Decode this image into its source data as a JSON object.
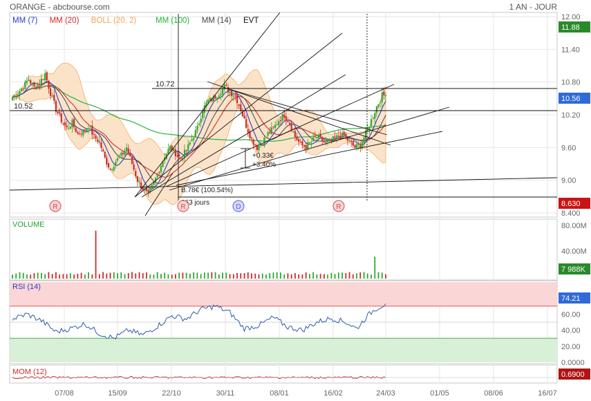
{
  "header": {
    "left_title": "ORANGE - abcbourse.com",
    "right_title": "1 AN - JOUR"
  },
  "legend": [
    {
      "label": "MM (7)",
      "color": "#2b39c8"
    },
    {
      "label": "MM (20)",
      "color": "#d32a2a"
    },
    {
      "label": "BOLL (20, 2)",
      "color": "#f2a455"
    },
    {
      "label": "MM (100)",
      "color": "#24b43c"
    },
    {
      "label": "MM (14)",
      "color": "#444444"
    },
    {
      "label": "EVT",
      "color": "#111111"
    }
  ],
  "colors": {
    "up_candle": "#2fa82f",
    "down_candle": "#cc2b2b",
    "boll_fill": "#fbe1c4",
    "rsi_upper_zone": "#fbd6d6",
    "rsi_lower_zone": "#d8efd8",
    "rsi_line": "#2c5ca8",
    "mom_line": "#cc2b2b",
    "grid": "#e6e6e6",
    "badge_last": "#2a8a2a",
    "badge_value": "#2f6ad8",
    "badge_low": "#c81414"
  },
  "chart_data": [
    {
      "type": "candlestick",
      "panel": "price",
      "x_ticks": [
        "07/08",
        "15/09",
        "22/10",
        "30/11",
        "08/01",
        "16/02",
        "24/03",
        "01/05",
        "08/06",
        "16/07"
      ],
      "y_ticks": [
        "12.00",
        "11.40",
        "10.80",
        "10.20",
        "9.60",
        "9.00",
        "8.400"
      ],
      "ylim": [
        8.4,
        12.0
      ],
      "close_path": [
        [
          0,
          10.52
        ],
        [
          3,
          10.6
        ],
        [
          6,
          10.72
        ],
        [
          9,
          10.85
        ],
        [
          12,
          10.7
        ],
        [
          15,
          10.78
        ],
        [
          18,
          10.95
        ],
        [
          21,
          10.6
        ],
        [
          24,
          10.3
        ],
        [
          27,
          10.1
        ],
        [
          30,
          9.95
        ],
        [
          33,
          10.05
        ],
        [
          36,
          9.85
        ],
        [
          39,
          9.9
        ],
        [
          42,
          10.0
        ],
        [
          45,
          9.8
        ],
        [
          48,
          9.7
        ],
        [
          51,
          9.4
        ],
        [
          54,
          9.2
        ],
        [
          57,
          9.35
        ],
        [
          60,
          9.45
        ],
        [
          63,
          9.6
        ],
        [
          66,
          9.3
        ],
        [
          69,
          9.0
        ],
        [
          72,
          8.85
        ],
        [
          75,
          8.72
        ],
        [
          78,
          8.95
        ],
        [
          81,
          9.2
        ],
        [
          84,
          9.45
        ],
        [
          87,
          9.6
        ],
        [
          90,
          9.5
        ],
        [
          93,
          9.4
        ],
        [
          96,
          9.55
        ],
        [
          99,
          9.75
        ],
        [
          102,
          9.95
        ],
        [
          105,
          10.3
        ],
        [
          108,
          10.45
        ],
        [
          111,
          10.5
        ],
        [
          114,
          10.6
        ],
        [
          117,
          10.72
        ],
        [
          120,
          10.62
        ],
        [
          123,
          10.55
        ],
        [
          126,
          10.3
        ],
        [
          129,
          10.0
        ],
        [
          132,
          9.75
        ],
        [
          135,
          9.6
        ],
        [
          138,
          9.7
        ],
        [
          141,
          9.85
        ],
        [
          144,
          9.95
        ],
        [
          147,
          10.1
        ],
        [
          150,
          10.2
        ],
        [
          153,
          10.05
        ],
        [
          156,
          9.8
        ],
        [
          159,
          9.65
        ],
        [
          162,
          9.62
        ],
        [
          165,
          9.7
        ],
        [
          168,
          9.8
        ],
        [
          171,
          9.72
        ],
        [
          174,
          9.68
        ],
        [
          177,
          9.75
        ],
        [
          180,
          9.8
        ],
        [
          183,
          9.82
        ],
        [
          186,
          9.7
        ],
        [
          189,
          9.6
        ],
        [
          192,
          9.65
        ],
        [
          195,
          9.85
        ],
        [
          198,
          10.1
        ],
        [
          201,
          10.35
        ],
        [
          204,
          10.55
        ],
        [
          207,
          10.56
        ]
      ],
      "candles_count": 207,
      "last_close": 10.56,
      "annotations": {
        "level_high_label": "10.72",
        "level_left_label": "10.52",
        "move_label": "+0.33€",
        "move_pct_label": "+3.40%",
        "change_label": "B.78€ (100.54%)",
        "days_label": "263 jours",
        "event_markers": [
          "R",
          "R",
          "D",
          "R"
        ]
      },
      "right_badges": {
        "top_value": "11.88",
        "last_value": "10.56",
        "low_value": "8.630"
      }
    },
    {
      "type": "bar",
      "panel": "volume",
      "title": "VOLUME",
      "y_ticks": [
        "80.00M",
        "40.00M"
      ],
      "ylim": [
        0,
        80
      ],
      "spikes": [
        [
          46,
          72
        ],
        [
          200,
          33
        ]
      ],
      "base_level": 6,
      "last_badge": "7 988K"
    },
    {
      "type": "line",
      "panel": "rsi",
      "title": "RSI (14)",
      "y_ticks": [
        "80.00",
        "60.00",
        "40.00",
        "20.00",
        "0.0000"
      ],
      "ylim": [
        0,
        100
      ],
      "zones": {
        "upper": 70,
        "lower": 30,
        "mid": 50
      },
      "values_path": [
        [
          0,
          54
        ],
        [
          8,
          60
        ],
        [
          16,
          52
        ],
        [
          24,
          38
        ],
        [
          32,
          42
        ],
        [
          40,
          48
        ],
        [
          48,
          36
        ],
        [
          56,
          30
        ],
        [
          64,
          40
        ],
        [
          72,
          34
        ],
        [
          80,
          45
        ],
        [
          88,
          58
        ],
        [
          96,
          54
        ],
        [
          104,
          66
        ],
        [
          112,
          70
        ],
        [
          120,
          62
        ],
        [
          128,
          42
        ],
        [
          136,
          46
        ],
        [
          144,
          56
        ],
        [
          152,
          44
        ],
        [
          160,
          40
        ],
        [
          168,
          50
        ],
        [
          176,
          55
        ],
        [
          184,
          50
        ],
        [
          190,
          42
        ],
        [
          196,
          58
        ],
        [
          200,
          66
        ],
        [
          207,
          74.21
        ]
      ],
      "last_badge": "74.21"
    },
    {
      "type": "line",
      "panel": "momentum",
      "title": "MOM (12)",
      "values_hint": "near zero",
      "last_badge": "0.6900"
    }
  ]
}
